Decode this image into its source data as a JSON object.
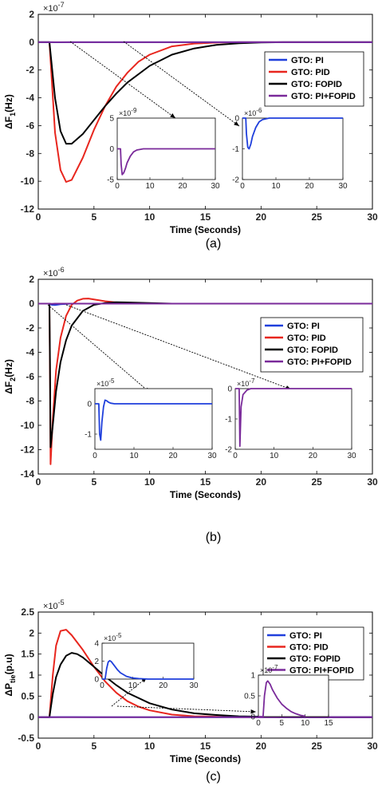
{
  "chart_data": [
    {
      "type": "line",
      "panel_label": "(a)",
      "exponent_label": "×10",
      "exponent_power": "-7",
      "xlabel": "Time (Seconds)",
      "ylabel": "ΔF",
      "ylabel_sub": "1",
      "ylabel_unit": "(Hz)",
      "xlim": [
        0,
        30
      ],
      "ylim": [
        -12,
        2
      ],
      "xticks": [
        "0",
        "5",
        "10",
        "15",
        "20",
        "25",
        "30"
      ],
      "yticks": [
        "2",
        "0",
        "-2",
        "-4",
        "-6",
        "-8",
        "-10",
        "-12"
      ],
      "legend": {
        "position": "right",
        "entries": [
          {
            "label": "GTO: PI",
            "color": "#1f3fdc"
          },
          {
            "label": "GTO: PID",
            "color": "#e8261e"
          },
          {
            "label": "GTO: FOPID",
            "color": "#000000"
          },
          {
            "label": "GTO: PI+FOPID",
            "color": "#7a2a9a"
          }
        ]
      },
      "series": [
        {
          "name": "GTO: PI",
          "color": "#1f3fdc",
          "x": [
            0,
            1,
            1.5,
            2,
            3,
            5,
            30
          ],
          "y": [
            0,
            0,
            -0.01,
            -0.01,
            -0.005,
            0,
            0
          ]
        },
        {
          "name": "GTO: PID",
          "color": "#e8261e",
          "x": [
            0,
            1,
            1.5,
            2,
            2.5,
            3,
            4,
            5,
            6,
            7,
            8,
            9,
            10,
            12,
            14,
            16,
            18,
            20,
            30
          ],
          "y": [
            0,
            0,
            -6.5,
            -9.2,
            -10.05,
            -9.9,
            -8.3,
            -6.3,
            -4.6,
            -3.2,
            -2.2,
            -1.4,
            -0.9,
            -0.3,
            -0.1,
            -0.03,
            0,
            0,
            0
          ]
        },
        {
          "name": "GTO: FOPID",
          "color": "#000000",
          "x": [
            0,
            1,
            1.5,
            2,
            2.5,
            3,
            4,
            5,
            6,
            7,
            8,
            10,
            12,
            14,
            16,
            18,
            20,
            22,
            30
          ],
          "y": [
            0,
            0,
            -4.0,
            -6.4,
            -7.3,
            -7.3,
            -6.6,
            -5.6,
            -4.6,
            -3.7,
            -2.9,
            -1.7,
            -0.9,
            -0.45,
            -0.2,
            -0.08,
            -0.02,
            0,
            0
          ]
        },
        {
          "name": "GTO: PI+FOPID",
          "color": "#7a2a9a",
          "x": [
            0,
            1,
            1.5,
            2,
            3,
            5,
            30
          ],
          "y": [
            0,
            0,
            -0.004,
            -0.004,
            -0.002,
            0,
            0
          ]
        }
      ],
      "insets": [
        {
          "exponent_label": "×10",
          "exponent_power": "-9",
          "xlim": [
            0,
            30
          ],
          "ylim": [
            -5,
            5
          ],
          "xticks": [
            "0",
            "10",
            "20",
            "30"
          ],
          "yticks": [
            "5",
            "0",
            "-5"
          ],
          "series_color": "#7a2a9a",
          "x": [
            0,
            1,
            1.2,
            1.5,
            2,
            2.5,
            3,
            4,
            5,
            6,
            8,
            10,
            30
          ],
          "y": [
            0,
            0,
            -2.5,
            -4.2,
            -3.9,
            -3.2,
            -2.3,
            -1.2,
            -0.5,
            -0.2,
            0,
            0,
            0
          ]
        },
        {
          "exponent_label": "×10",
          "exponent_power": "-6",
          "xlim": [
            0,
            30
          ],
          "ylim": [
            -2,
            0
          ],
          "xticks": [
            "0",
            "10",
            "20",
            "30"
          ],
          "yticks": [
            "0",
            "-1",
            "-2"
          ],
          "series_color": "#1f3fdc",
          "x": [
            0,
            1,
            1.2,
            1.6,
            2,
            2.5,
            3,
            4,
            5,
            6,
            8,
            10,
            30
          ],
          "y": [
            0,
            0,
            -0.5,
            -0.95,
            -1.0,
            -0.85,
            -0.6,
            -0.3,
            -0.12,
            -0.05,
            0,
            0,
            0
          ]
        }
      ]
    },
    {
      "type": "line",
      "panel_label": "(b)",
      "exponent_label": "×10",
      "exponent_power": "-6",
      "xlabel": "Time (Seconds)",
      "ylabel": "ΔF",
      "ylabel_sub": "2",
      "ylabel_unit": "(Hz)",
      "xlim": [
        0,
        30
      ],
      "ylim": [
        -14,
        2
      ],
      "xticks": [
        "0",
        "5",
        "10",
        "15",
        "20",
        "25",
        "30"
      ],
      "yticks": [
        "2",
        "0",
        "-2",
        "-4",
        "-6",
        "-8",
        "-10",
        "-12",
        "-14"
      ],
      "legend": {
        "position": "right",
        "entries": [
          {
            "label": "GTO: PI",
            "color": "#1f3fdc"
          },
          {
            "label": "GTO: PID",
            "color": "#e8261e"
          },
          {
            "label": "GTO: FOPID",
            "color": "#000000"
          },
          {
            "label": "GTO: PI+FOPID",
            "color": "#7a2a9a"
          }
        ]
      },
      "series": [
        {
          "name": "GTO: PI",
          "color": "#1f3fdc",
          "x": [
            0,
            1,
            1.2,
            1.5,
            2,
            3,
            30
          ],
          "y": [
            0,
            0,
            -0.1,
            -0.12,
            -0.05,
            0,
            0
          ]
        },
        {
          "name": "GTO: PID",
          "color": "#e8261e",
          "x": [
            0,
            1,
            1.05,
            1.1,
            1.3,
            1.6,
            2,
            2.5,
            3,
            3.5,
            4,
            4.5,
            5,
            6,
            7,
            8,
            10,
            12,
            30
          ],
          "y": [
            0,
            0,
            -6,
            -13.2,
            -9.5,
            -5.5,
            -2.8,
            -1.0,
            -0.1,
            0.25,
            0.4,
            0.42,
            0.35,
            0.2,
            0.1,
            0.05,
            0,
            0,
            0
          ]
        },
        {
          "name": "GTO: FOPID",
          "color": "#000000",
          "x": [
            0,
            1,
            1.05,
            1.1,
            1.3,
            1.6,
            2,
            2.5,
            3,
            4,
            5,
            6,
            7,
            8,
            10,
            12,
            30
          ],
          "y": [
            0,
            0,
            -5,
            -11.8,
            -10,
            -7.2,
            -4.8,
            -3.0,
            -1.8,
            -0.6,
            -0.1,
            0.05,
            0.12,
            0.1,
            0.05,
            0,
            0
          ]
        },
        {
          "name": "GTO: PI+FOPID",
          "color": "#7a2a9a",
          "x": [
            0,
            1,
            1.2,
            1.5,
            30
          ],
          "y": [
            0,
            0,
            -0.02,
            0,
            0
          ]
        }
      ],
      "insets": [
        {
          "exponent_label": "×10",
          "exponent_power": "-5",
          "xlim": [
            0,
            30
          ],
          "ylim": [
            -1.5,
            0.5
          ],
          "xticks": [
            "0",
            "10",
            "20",
            "30"
          ],
          "yticks": [
            "0",
            "-1"
          ],
          "series_color": "#1f3fdc",
          "x": [
            0,
            1,
            1.2,
            1.5,
            1.8,
            2.2,
            2.6,
            3,
            3.5,
            4,
            5,
            6,
            8,
            30
          ],
          "y": [
            0,
            0,
            -1.0,
            -1.2,
            -0.6,
            -0.1,
            0.12,
            0.1,
            0.05,
            0.02,
            0,
            0,
            0,
            0
          ]
        },
        {
          "exponent_label": "×10",
          "exponent_power": "-7",
          "xlim": [
            0,
            30
          ],
          "ylim": [
            -2,
            0
          ],
          "xticks": [
            "0",
            "10",
            "20",
            "30"
          ],
          "yticks": [
            "0",
            "-1",
            "-2"
          ],
          "series_color": "#7a2a9a",
          "x": [
            0,
            1,
            1.1,
            1.2,
            1.5,
            2,
            3,
            4,
            6,
            30
          ],
          "y": [
            0,
            0,
            -1.0,
            -1.9,
            -0.6,
            -0.2,
            -0.05,
            0,
            0,
            0
          ]
        }
      ]
    },
    {
      "type": "line",
      "panel_label": "(c)",
      "exponent_label": "×10",
      "exponent_power": "-5",
      "xlabel": "Time (Seconds)",
      "ylabel": "ΔP",
      "ylabel_sub": "tie",
      "ylabel_unit": "(p.u)",
      "xlim": [
        0,
        30
      ],
      "ylim": [
        -0.5,
        2.5
      ],
      "xticks": [
        "0",
        "5",
        "10",
        "15",
        "20",
        "25",
        "30"
      ],
      "yticks": [
        "2.5",
        "2",
        "1.5",
        "1",
        "0.5",
        "0",
        "-0.5"
      ],
      "legend": {
        "position": "right",
        "entries": [
          {
            "label": "GTO: PI",
            "color": "#1f3fdc"
          },
          {
            "label": "GTO: PID",
            "color": "#e8261e"
          },
          {
            "label": "GTO: FOPID",
            "color": "#000000"
          },
          {
            "label": "GTO: PI+FOPID",
            "color": "#7a2a9a"
          }
        ]
      },
      "series": [
        {
          "name": "GTO: PI",
          "color": "#1f3fdc",
          "x": [
            0,
            1,
            2,
            3,
            5,
            30
          ],
          "y": [
            0,
            0,
            0.002,
            0.001,
            0,
            0
          ]
        },
        {
          "name": "GTO: PID",
          "color": "#e8261e",
          "x": [
            0,
            1,
            1.3,
            1.6,
            2,
            2.5,
            3,
            4,
            5,
            6,
            7,
            8,
            9,
            10,
            12,
            14,
            16,
            18,
            20,
            30
          ],
          "y": [
            0,
            0,
            1.0,
            1.7,
            2.05,
            2.08,
            1.95,
            1.6,
            1.2,
            0.85,
            0.58,
            0.38,
            0.25,
            0.16,
            0.06,
            0.02,
            0.01,
            0,
            0,
            0
          ]
        },
        {
          "name": "GTO: FOPID",
          "color": "#000000",
          "x": [
            0,
            1,
            1.3,
            1.6,
            2,
            2.5,
            3,
            3.5,
            4,
            5,
            6,
            7,
            8,
            10,
            12,
            14,
            16,
            18,
            20,
            22,
            30
          ],
          "y": [
            0,
            0,
            0.55,
            0.95,
            1.25,
            1.46,
            1.53,
            1.5,
            1.42,
            1.2,
            0.97,
            0.76,
            0.58,
            0.33,
            0.18,
            0.09,
            0.05,
            0.02,
            0.01,
            0,
            0
          ]
        },
        {
          "name": "GTO: PI+FOPID",
          "color": "#7a2a9a",
          "x": [
            0,
            30
          ],
          "y": [
            0,
            0
          ]
        }
      ],
      "insets": [
        {
          "exponent_label": "×10",
          "exponent_power": "-5",
          "xlim": [
            0,
            30
          ],
          "ylim": [
            0,
            4
          ],
          "xticks": [
            "0",
            "10",
            "20",
            "30"
          ],
          "yticks": [
            "4",
            "2",
            "0"
          ],
          "series_color": "#1f3fdc",
          "x": [
            0,
            1,
            1.5,
            2,
            2.5,
            3,
            4,
            5,
            6,
            8,
            10,
            12,
            15,
            30
          ],
          "y": [
            0,
            0,
            1.2,
            1.9,
            2.05,
            1.95,
            1.5,
            1.05,
            0.7,
            0.3,
            0.12,
            0.05,
            0,
            0
          ]
        },
        {
          "exponent_label": "×10",
          "exponent_power": "-7",
          "xlim": [
            0,
            15
          ],
          "ylim": [
            0,
            1
          ],
          "xticks": [
            "0",
            "5",
            "10",
            "15"
          ],
          "yticks": [
            "1",
            "0.5",
            "0"
          ],
          "series_color": "#7a2a9a",
          "x": [
            0,
            1,
            1.3,
            1.7,
            2,
            2.5,
            3,
            4,
            5,
            6,
            7,
            8,
            9,
            10
          ],
          "y": [
            0,
            0,
            0.5,
            0.82,
            0.86,
            0.78,
            0.65,
            0.45,
            0.3,
            0.2,
            0.12,
            0.07,
            0.03,
            0.01
          ]
        }
      ]
    }
  ]
}
